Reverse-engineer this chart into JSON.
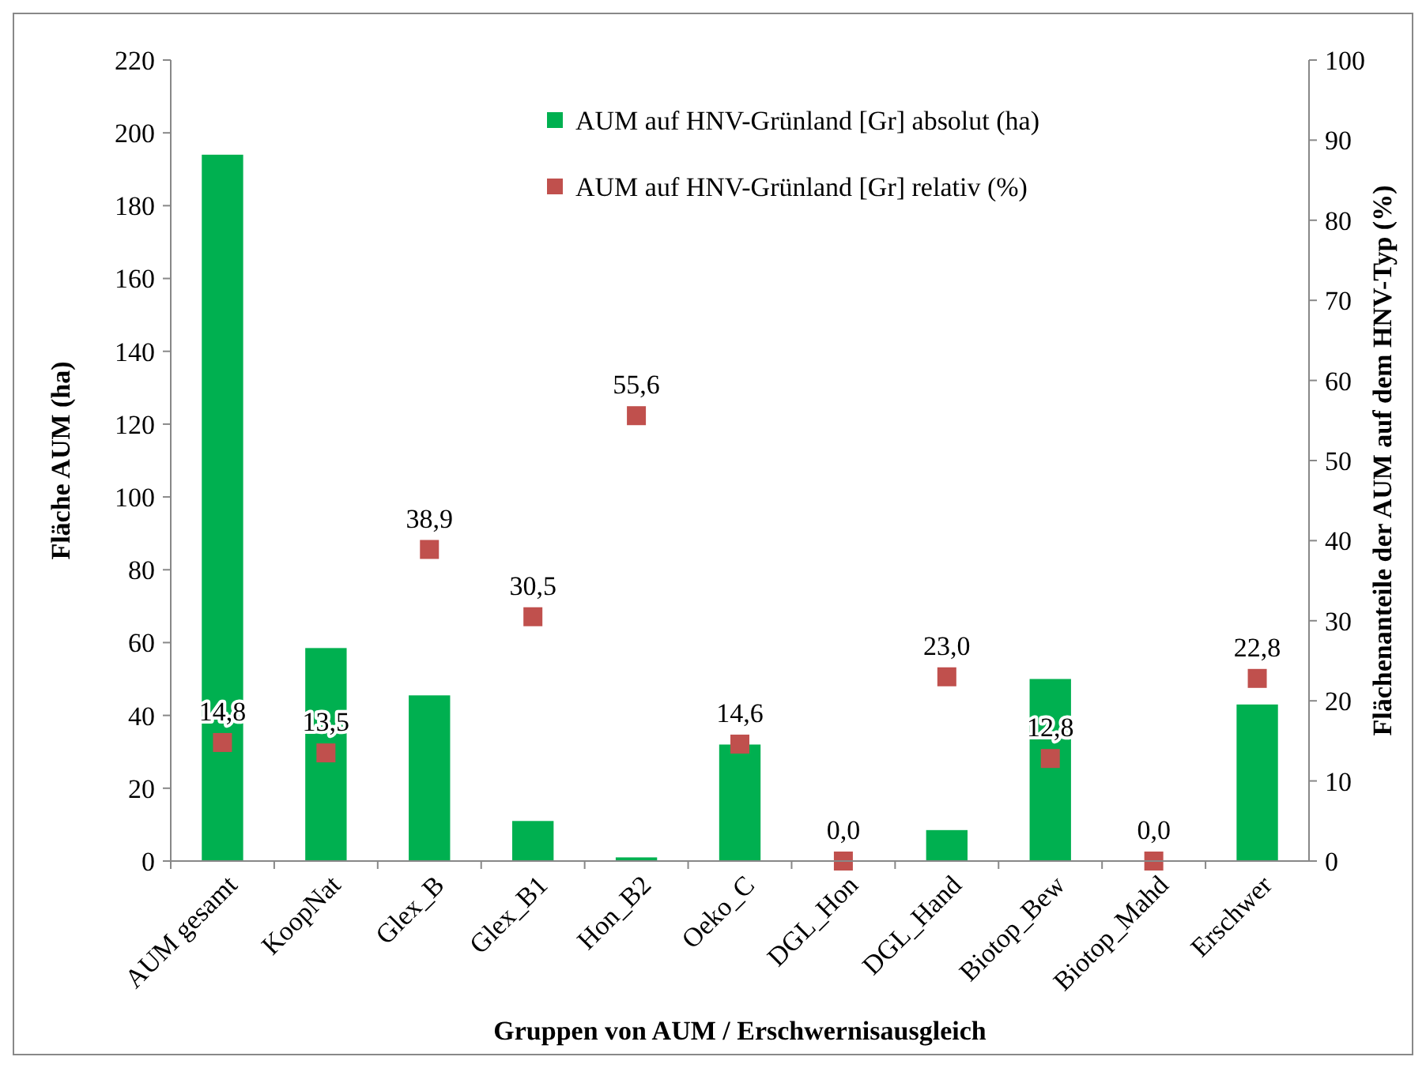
{
  "chart_data": {
    "type": "bar",
    "xlabel": "Gruppen von AUM / Erschwernisausgleich",
    "ylabel": "Fläche AUM (ha)",
    "y2label": "Flächenanteile der AUM auf dem HNV-Typ  (%)",
    "categories": [
      "AUM gesamt",
      "KoopNat",
      "Glex_B",
      "Glex_B1",
      "Hon_B2",
      "Oeko_C",
      "DGL_Hon",
      "DGL_Hand",
      "Biotop_Bew",
      "Biotop_Mahd",
      "Erschwer"
    ],
    "series": [
      {
        "name": "AUM auf HNV-Grünland [Gr] absolut (ha)",
        "color": "#00b050",
        "values": [
          194,
          58.5,
          45.5,
          11,
          1,
          32,
          0,
          8.5,
          50,
          0,
          43
        ]
      },
      {
        "name": "AUM auf HNV-Grünland [Gr] relativ (%)",
        "type": "scatter",
        "axis": "y2",
        "color": "#c0504d",
        "values": [
          14.8,
          13.5,
          38.9,
          30.5,
          55.6,
          14.6,
          0.0,
          23.0,
          12.8,
          0.0,
          22.8
        ],
        "value_labels": [
          "14,8",
          "13,5",
          "38,9",
          "30,5",
          "55,6",
          "14,6",
          "0,0",
          "23,0",
          "12,8",
          "0,0",
          "22,8"
        ]
      }
    ],
    "ylim": [
      0,
      220
    ],
    "yticks": [
      0,
      20,
      40,
      60,
      80,
      100,
      120,
      140,
      160,
      180,
      200,
      220
    ],
    "y2lim": [
      0,
      100
    ],
    "y2ticks": [
      0,
      10,
      20,
      30,
      40,
      50,
      60,
      70,
      80,
      90,
      100
    ],
    "marker": "square",
    "legend": "top",
    "grid": false
  }
}
